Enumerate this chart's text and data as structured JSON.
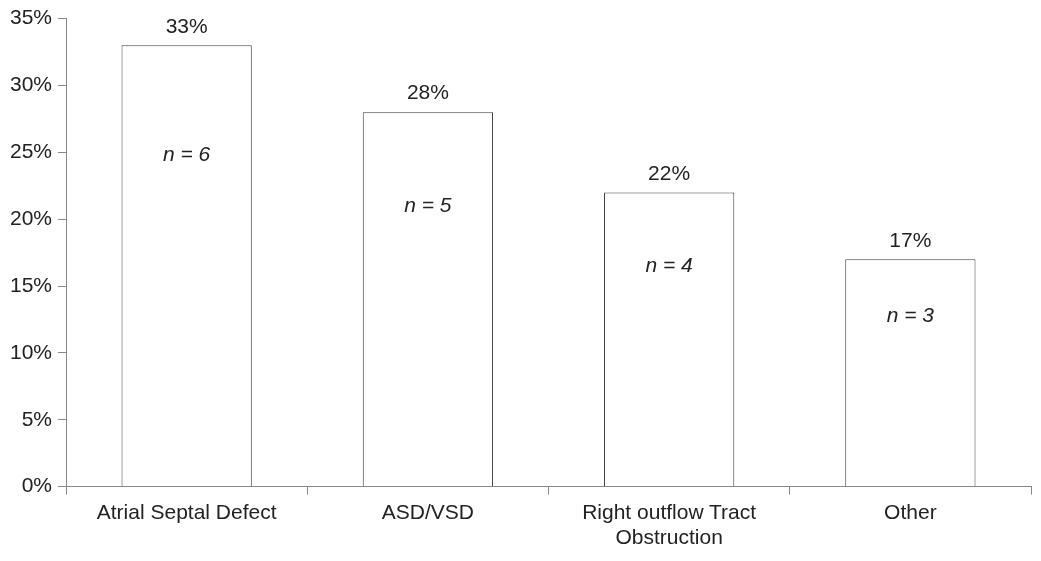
{
  "chart_data": {
    "type": "bar",
    "categories": [
      "Atrial Septal Defect",
      "ASD/VSD",
      "Right outflow Tract Obstruction",
      "Other"
    ],
    "values": [
      33,
      28,
      22,
      17
    ],
    "value_labels": [
      "33%",
      "28%",
      "22%",
      "17%"
    ],
    "color": "#ffffff",
    "ylim": [
      0,
      35
    ],
    "yticks": [
      {
        "value": 0,
        "label": "0%"
      },
      {
        "value": 5,
        "label": "5%"
      },
      {
        "value": 10,
        "label": "10%"
      },
      {
        "value": 15,
        "label": "15%"
      },
      {
        "value": 20,
        "label": "20%"
      },
      {
        "value": 25,
        "label": "25%"
      },
      {
        "value": 30,
        "label": "30%"
      },
      {
        "value": 35,
        "label": "35%"
      }
    ],
    "annotations": [
      "n = 6",
      "n = 5",
      "n = 4",
      "n = 3"
    ],
    "grid": false,
    "legend": false
  }
}
